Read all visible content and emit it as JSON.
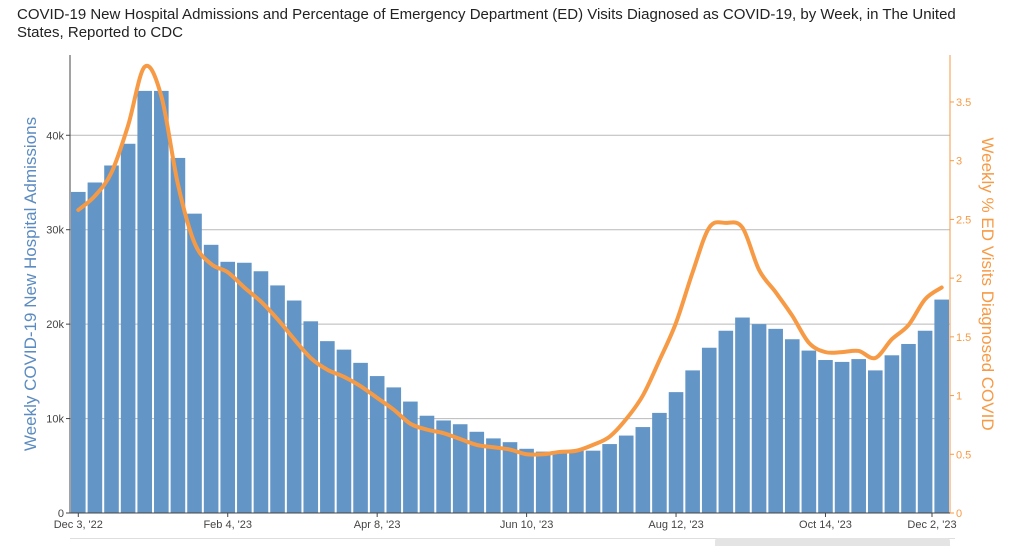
{
  "title": "COVID-19 New Hospital Admissions and Percentage of Emergency Department (ED) Visits Diagnosed as COVID-19, by Week, in The United States, Reported to CDC",
  "chart_data": {
    "type": "bar+line",
    "title": "COVID-19 New Hospital Admissions and Percentage of Emergency Department (ED) Visits Diagnosed as COVID-19, by Week, in The United States, Reported to CDC",
    "ylabel": "Weekly COVID-19 New Hospital Admissions",
    "y2label": "Weekly % ED Visits Diagnosed COVID",
    "ylim": [
      0,
      48500
    ],
    "y2lim": [
      0,
      3.9
    ],
    "yticks": [
      0,
      10000,
      20000,
      30000,
      40000
    ],
    "yticklabels": [
      "0",
      "10k",
      "20k",
      "30k",
      "40k"
    ],
    "y2ticks": [
      0,
      0.5,
      1,
      1.5,
      2,
      2.5,
      3,
      3.5
    ],
    "y2ticklabels": [
      "0",
      "0.5",
      "1",
      "1.5",
      "2",
      "2.5",
      "3",
      "3.5"
    ],
    "x_ticklabels": [
      {
        "label": "Dec 3, '22",
        "index": 0
      },
      {
        "label": "Feb 4, '23",
        "index": 9
      },
      {
        "label": "Apr 8, '23",
        "index": 18
      },
      {
        "label": "Jun 10, '23",
        "index": 27
      },
      {
        "label": "Aug 12, '23",
        "index": 36
      },
      {
        "label": "Oct 14, '23",
        "index": 45
      },
      {
        "label": "Dec 2, '23",
        "index": 52
      }
    ],
    "grid": true,
    "series": [
      {
        "name": "Weekly COVID-19 New Hospital Admissions",
        "type": "bar",
        "color": "#6396c6",
        "values": [
          34000,
          35000,
          36800,
          39100,
          44700,
          44700,
          37600,
          31700,
          28400,
          26600,
          26500,
          25600,
          24100,
          22500,
          20300,
          18200,
          17300,
          15900,
          14500,
          13300,
          11800,
          10300,
          9800,
          9400,
          8600,
          7900,
          7500,
          6800,
          6500,
          6400,
          6600,
          6600,
          7300,
          8200,
          9100,
          10600,
          12800,
          15100,
          17500,
          19300,
          20700,
          20000,
          19500,
          18400,
          17200,
          16200,
          16000,
          16300,
          15100,
          16700,
          17900,
          19300,
          22600
        ]
      },
      {
        "name": "Weekly % ED Visits Diagnosed COVID",
        "type": "line",
        "color": "#f79a45",
        "values": [
          2.58,
          2.7,
          2.9,
          3.3,
          3.8,
          3.55,
          2.8,
          2.3,
          2.12,
          2.05,
          1.92,
          1.8,
          1.65,
          1.48,
          1.32,
          1.22,
          1.16,
          1.08,
          0.98,
          0.88,
          0.76,
          0.71,
          0.68,
          0.63,
          0.58,
          0.56,
          0.54,
          0.5,
          0.5,
          0.52,
          0.53,
          0.58,
          0.65,
          0.8,
          1.0,
          1.3,
          1.62,
          2.05,
          2.43,
          2.47,
          2.43,
          2.07,
          1.88,
          1.68,
          1.45,
          1.37,
          1.37,
          1.38,
          1.32,
          1.48,
          1.6,
          1.82,
          1.92
        ]
      }
    ]
  }
}
